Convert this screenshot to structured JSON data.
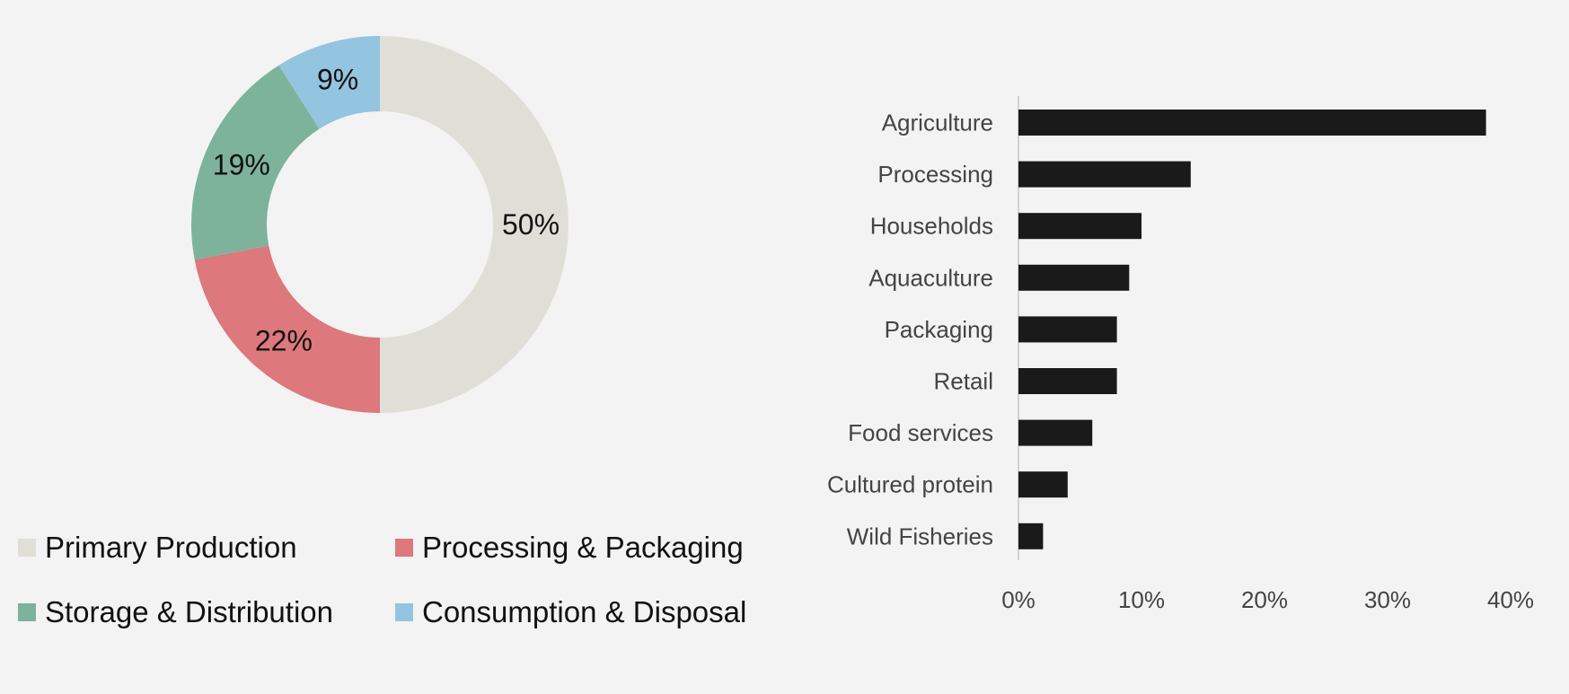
{
  "chart_data": [
    {
      "type": "pie",
      "donut": true,
      "title": "",
      "categories": [
        "Primary Production",
        "Processing & Packaging",
        "Storage & Distribution",
        "Consumption & Disposal"
      ],
      "values": [
        50,
        22,
        19,
        9
      ],
      "labels": [
        "50%",
        "22%",
        "19%",
        "9%"
      ],
      "colors": [
        "#e0dfd7",
        "#dd787c",
        "#7db39a",
        "#93c4e0"
      ],
      "legend_position": "bottom"
    },
    {
      "type": "bar",
      "orientation": "horizontal",
      "title": "",
      "xlabel": "",
      "ylabel": "",
      "categories": [
        "Agriculture",
        "Processing",
        "Households",
        "Aquaculture",
        "Packaging",
        "Retail",
        "Food services",
        "Cultured protein",
        "Wild Fisheries"
      ],
      "values": [
        38,
        14,
        10,
        9,
        8,
        8,
        6,
        4,
        2
      ],
      "xlim": [
        0,
        40
      ],
      "xticks": [
        "0%",
        "10%",
        "20%",
        "30%",
        "40%"
      ],
      "color": "#1a1a1a",
      "grid": false
    }
  ]
}
